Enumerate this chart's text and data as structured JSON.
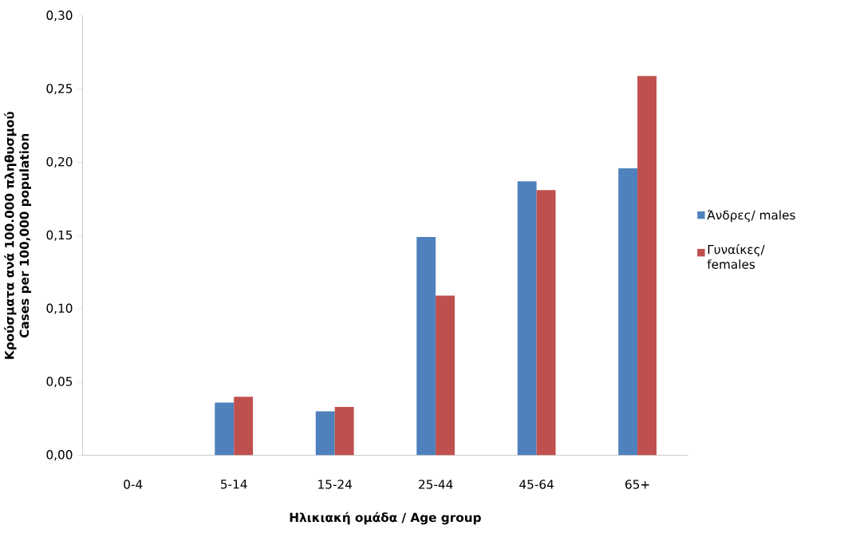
{
  "chart_data": {
    "type": "bar",
    "xlabel": "Ηλικιακή ομάδα / Age group",
    "ylabel": "Κρούσματα ανά 100.000 πληθυσμού Cases per 100,000 population",
    "categories": [
      "0-4",
      "5-14",
      "15-24",
      "25-44",
      "45-64",
      "65+"
    ],
    "series": [
      {
        "name": "Άνδρες/ males",
        "color": "#4f81bd",
        "values": [
          0,
          0.036,
          0.03,
          0.149,
          0.187,
          0.196
        ]
      },
      {
        "name": "Γυναίκες/ females",
        "color": "#c0504d",
        "values": [
          0,
          0.04,
          0.033,
          0.109,
          0.181,
          0.259
        ]
      }
    ],
    "ylim": [
      0,
      0.3
    ],
    "yticks": [
      {
        "value": 0,
        "label": "0,00"
      },
      {
        "value": 0.05,
        "label": "0,05"
      },
      {
        "value": 0.1,
        "label": "0,10"
      },
      {
        "value": 0.15,
        "label": "0,15"
      },
      {
        "value": 0.2,
        "label": "0,20"
      },
      {
        "value": 0.25,
        "label": "0,25"
      },
      {
        "value": 0.3,
        "label": "0,30"
      }
    ],
    "legend": "right"
  }
}
